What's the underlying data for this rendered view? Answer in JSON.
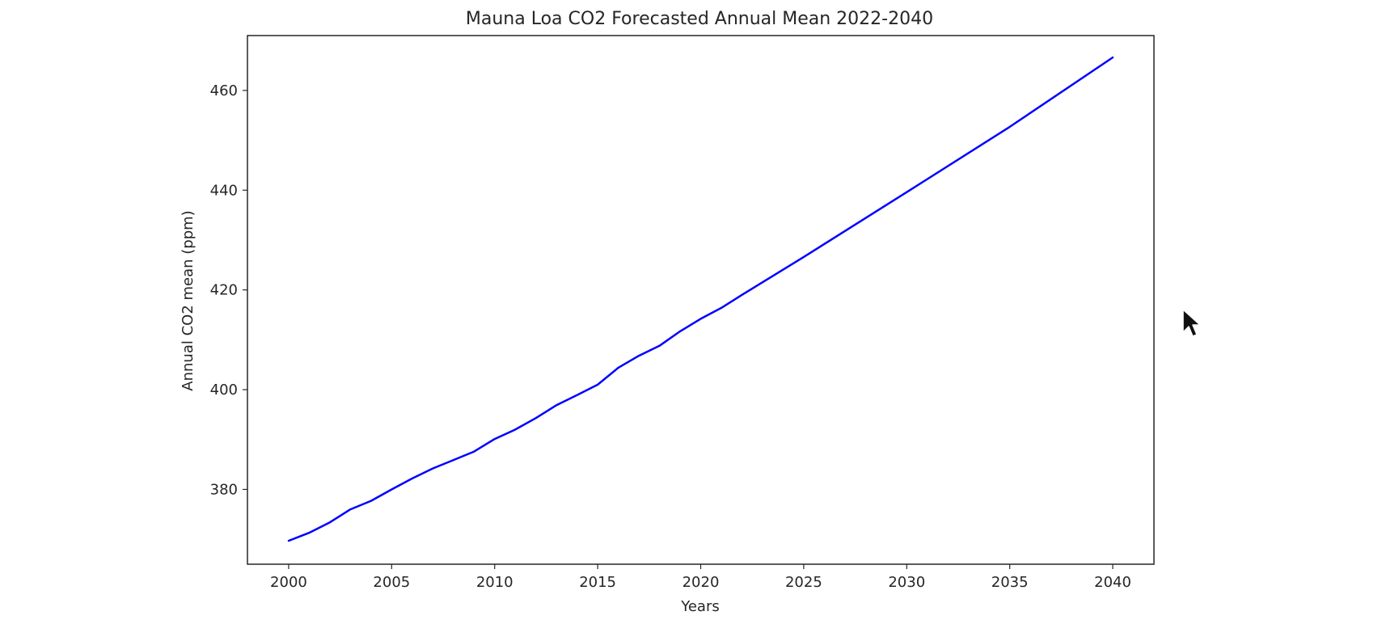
{
  "chart_data": {
    "type": "line",
    "title": "Mauna Loa CO2 Forecasted Annual Mean 2022-2040",
    "xlabel": "Years",
    "ylabel": "Annual CO2 mean (ppm)",
    "xlim": [
      1998,
      2042
    ],
    "ylim": [
      365,
      471
    ],
    "xticks": [
      2000,
      2005,
      2010,
      2015,
      2020,
      2025,
      2030,
      2035,
      2040
    ],
    "yticks": [
      380,
      400,
      420,
      440,
      460
    ],
    "grid": false,
    "legend": "none",
    "series": [
      {
        "color": "#0000ff",
        "x": [
          2000,
          2001,
          2002,
          2003,
          2004,
          2005,
          2006,
          2007,
          2008,
          2009,
          2010,
          2011,
          2012,
          2013,
          2014,
          2015,
          2016,
          2017,
          2018,
          2019,
          2020,
          2021,
          2022,
          2025,
          2030,
          2035,
          2040
        ],
        "y": [
          369.7,
          371.3,
          373.4,
          376.0,
          377.7,
          380.0,
          382.2,
          384.2,
          385.9,
          387.6,
          390.1,
          392.0,
          394.3,
          396.9,
          398.9,
          401.0,
          404.4,
          406.8,
          408.8,
          411.7,
          414.2,
          416.4,
          419.0,
          426.6,
          439.6,
          452.7,
          466.6
        ]
      }
    ]
  }
}
